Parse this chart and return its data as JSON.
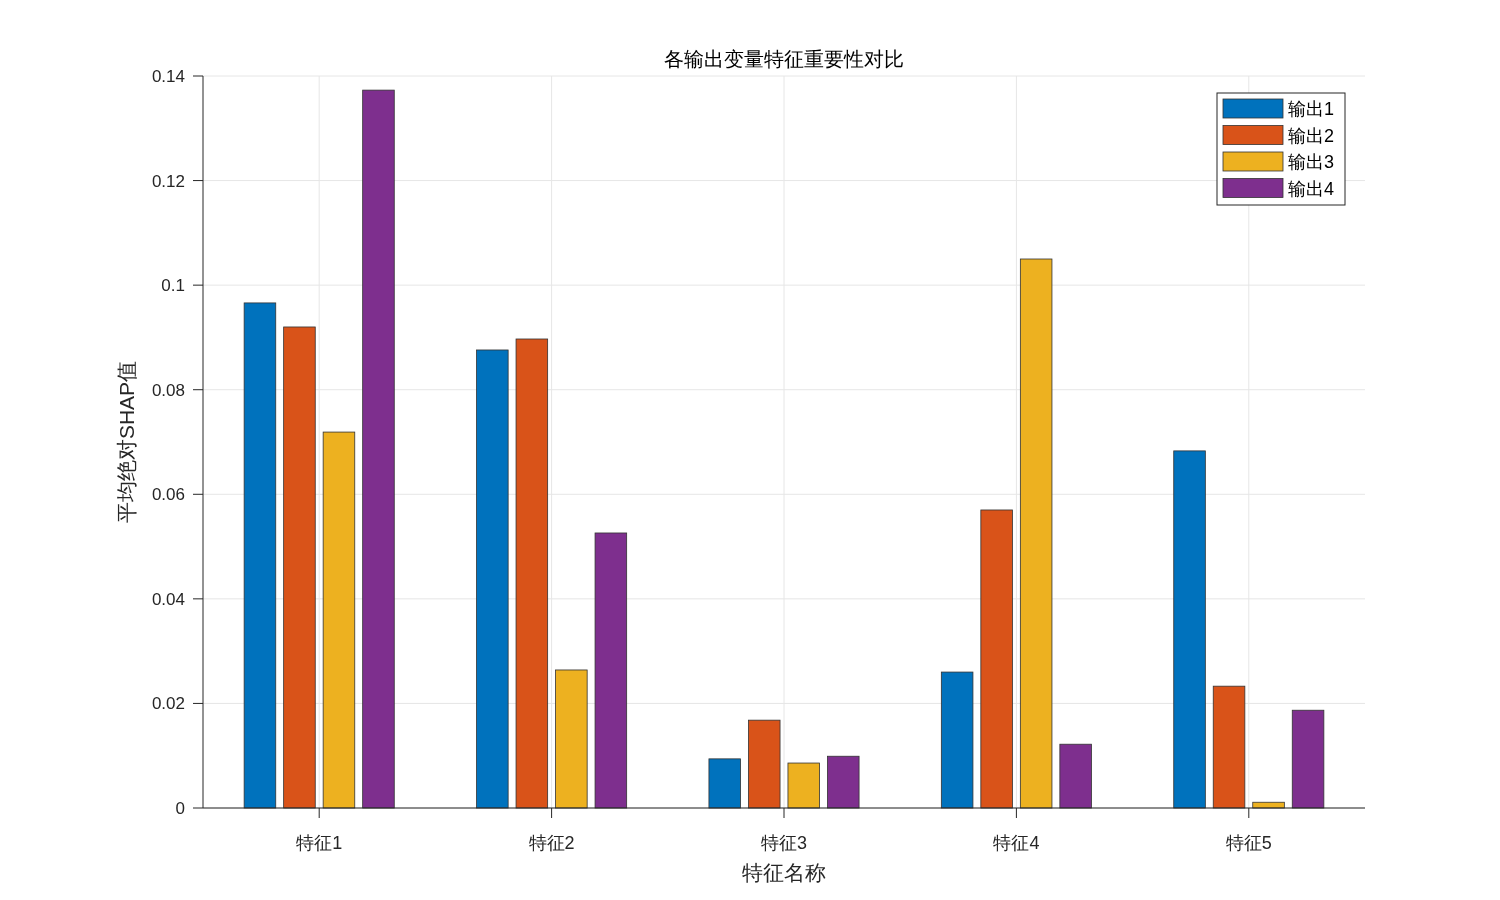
{
  "chart_data": {
    "type": "bar",
    "title": "各输出变量特征重要性对比",
    "xlabel": "特征名称",
    "ylabel": "平均绝对SHAP值",
    "categories": [
      "特征1",
      "特征2",
      "特征3",
      "特征4",
      "特征5"
    ],
    "series": [
      {
        "name": "输出1",
        "color": "#0072bd",
        "values": [
          0.0966,
          0.0876,
          0.0094,
          0.026,
          0.0683
        ]
      },
      {
        "name": "输出2",
        "color": "#d95319",
        "values": [
          0.092,
          0.0897,
          0.0168,
          0.057,
          0.0233
        ]
      },
      {
        "name": "输出3",
        "color": "#edb120",
        "values": [
          0.0719,
          0.0264,
          0.0086,
          0.105,
          0.0011
        ]
      },
      {
        "name": "输出4",
        "color": "#7e2f8e",
        "values": [
          0.1373,
          0.0526,
          0.0099,
          0.0122,
          0.0187
        ]
      }
    ],
    "ylim": [
      0,
      0.14
    ],
    "yticks": [
      0,
      0.02,
      0.04,
      0.06,
      0.08,
      0.1,
      0.12,
      0.14
    ],
    "grid": true,
    "legend": "top right"
  }
}
